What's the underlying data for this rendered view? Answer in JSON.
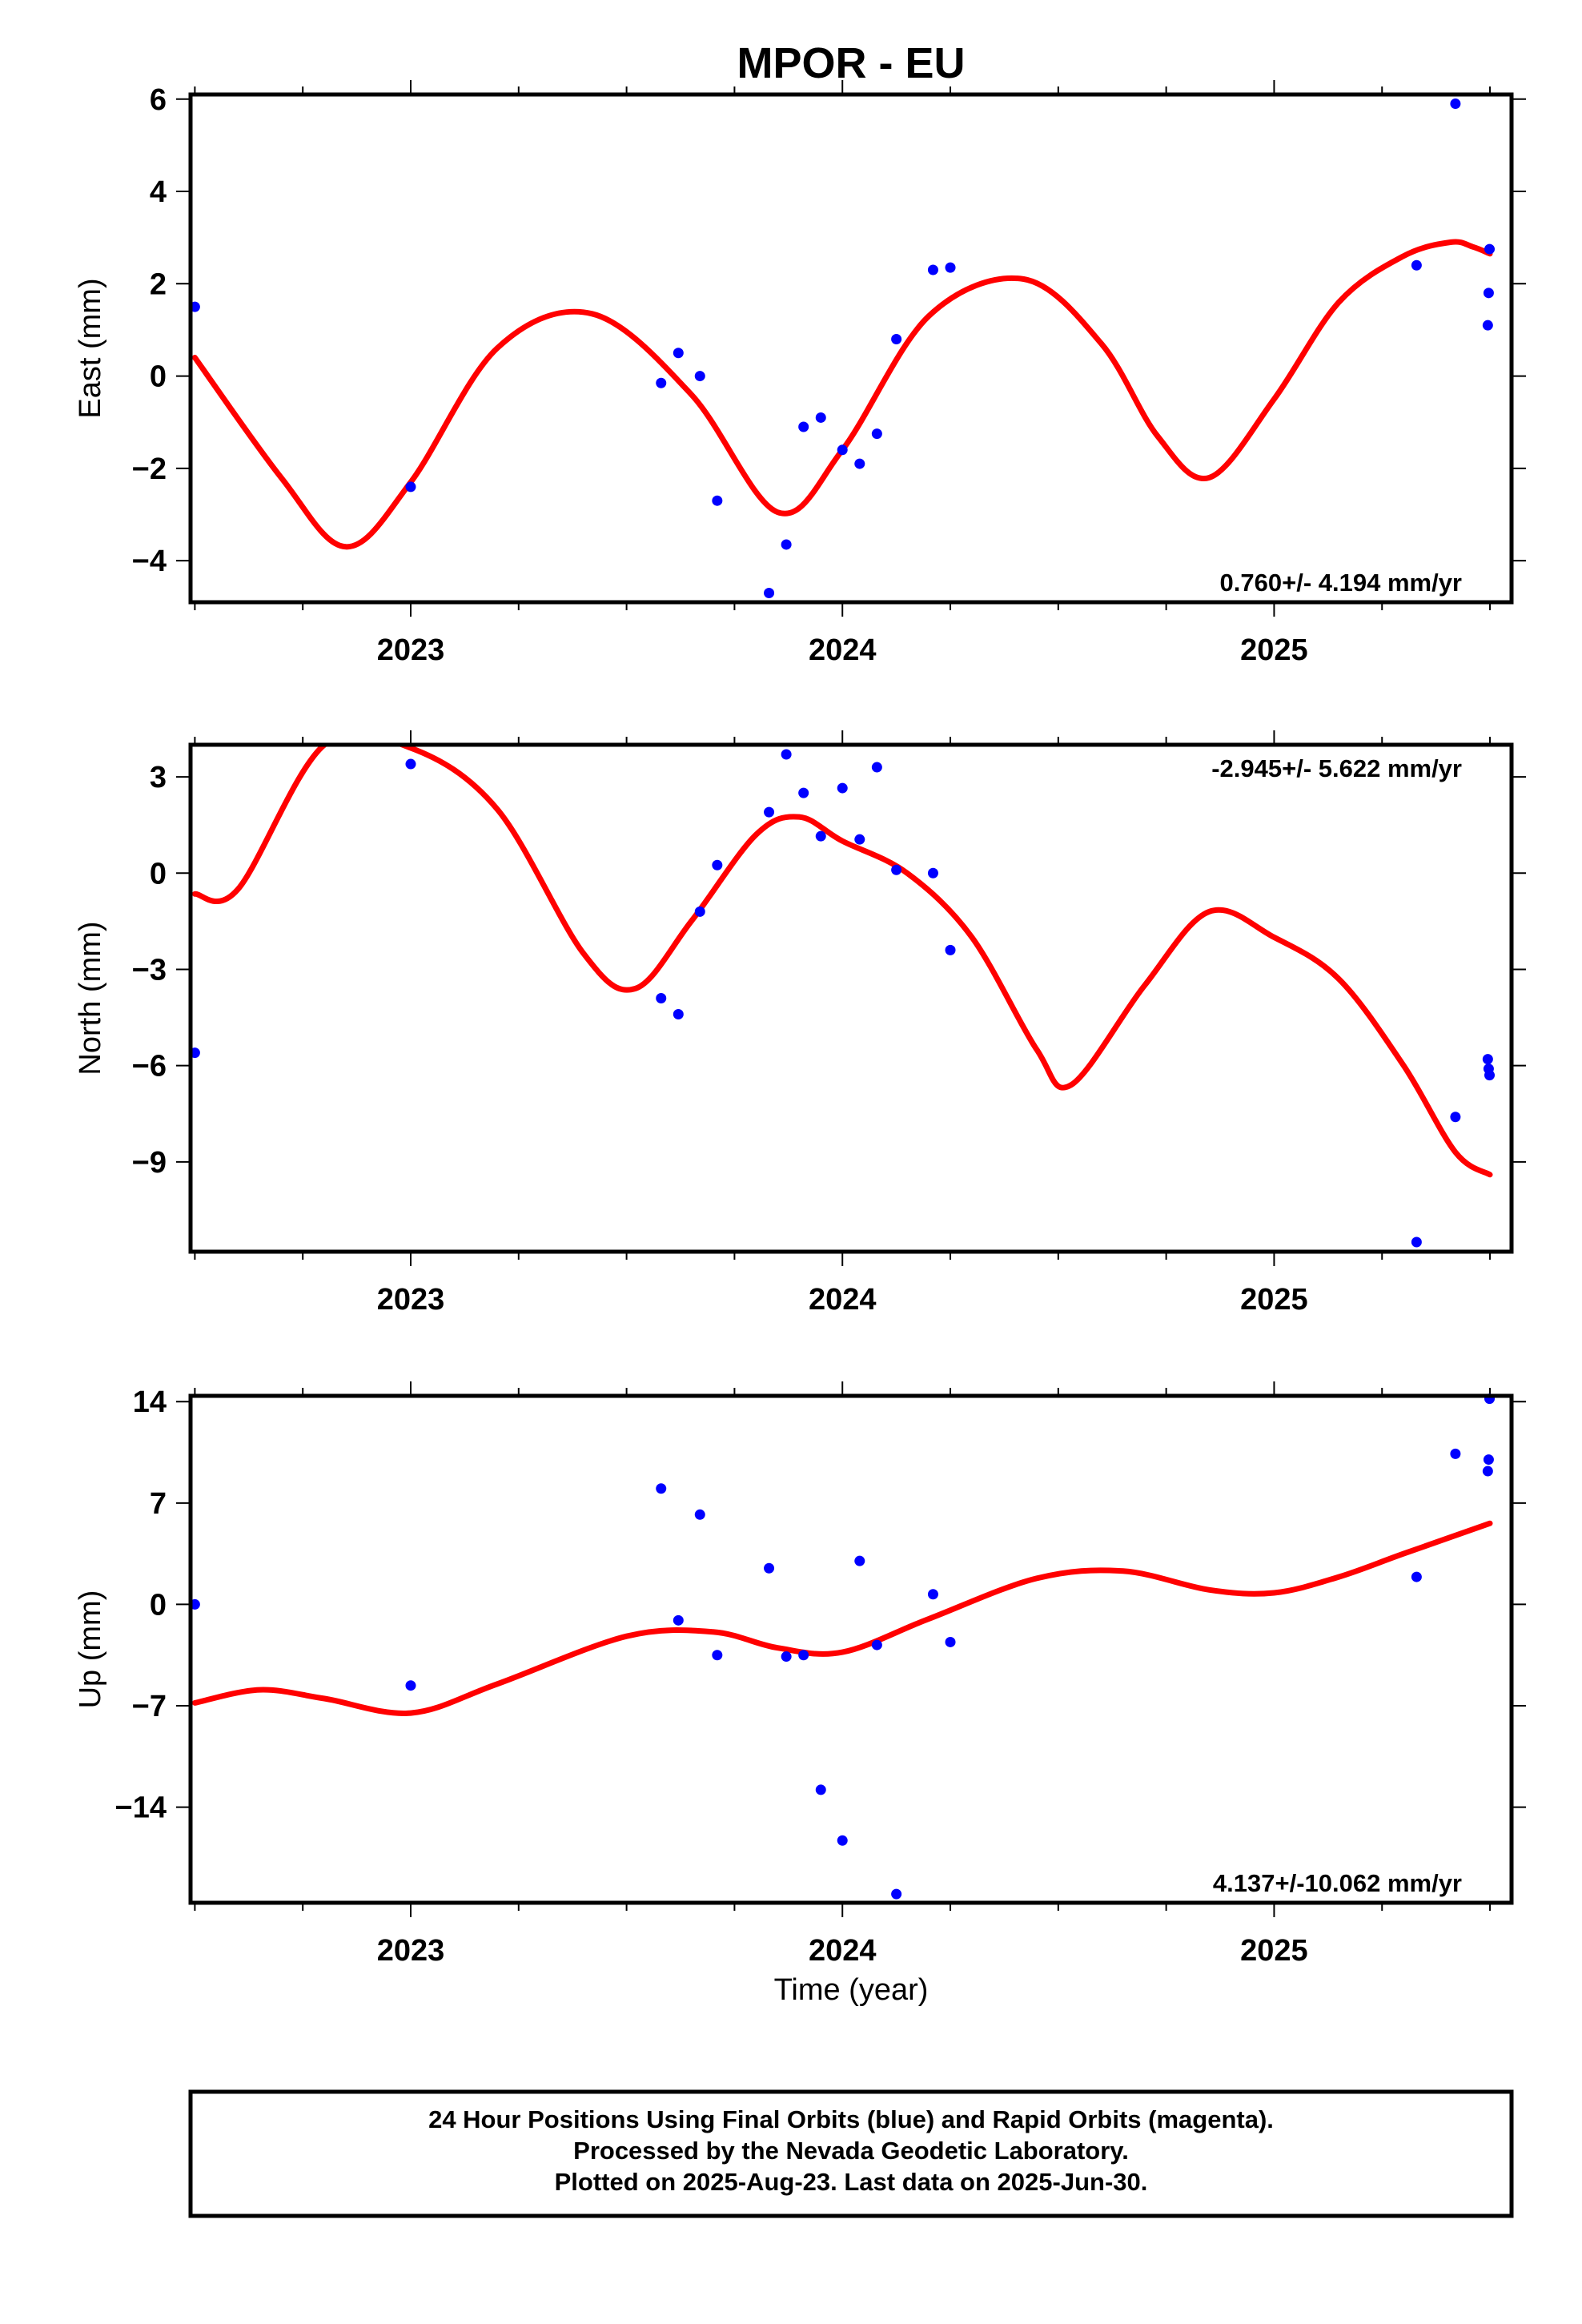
{
  "title": "MPOR - EU",
  "xlabel": "Time (year)",
  "footer": [
    "24 Hour Positions Using Final Orbits (blue) and Rapid Orbits (magenta).",
    "Processed by the Nevada Geodetic Laboratory.",
    "Plotted on 2025-Aug-23. Last data on 2025-Jun-30."
  ],
  "colors": {
    "points": "#0000ff",
    "fit": "#ff0000",
    "frame": "#000000"
  },
  "chart_data": [
    {
      "type": "scatter",
      "ylabel": "East (mm)",
      "rate_label": "0.760+/- 4.194 mm/yr",
      "xlim": [
        2022.49,
        2025.55
      ],
      "ylim": [
        -4.9,
        6.1
      ],
      "xticks": [
        2023,
        2024,
        2025
      ],
      "yticks": [
        -4,
        -2,
        0,
        2,
        4,
        6
      ],
      "points": {
        "x": [
          2022.5,
          2023.0,
          2023.58,
          2023.62,
          2023.67,
          2023.71,
          2023.83,
          2023.87,
          2023.91,
          2023.95,
          2024.0,
          2024.04,
          2024.08,
          2024.125,
          2024.21,
          2024.25,
          2025.33,
          2025.42,
          2025.495,
          2025.497,
          2025.499
        ],
        "y": [
          1.5,
          -2.4,
          -0.15,
          0.5,
          0.0,
          -2.7,
          -4.7,
          -3.65,
          -1.1,
          -0.9,
          -1.6,
          -1.9,
          -1.25,
          0.8,
          2.3,
          2.35,
          2.4,
          5.9,
          1.1,
          1.8,
          2.75
        ]
      },
      "fit": {
        "x": [
          2022.5,
          2022.7,
          2022.85,
          2023.0,
          2023.2,
          2023.42,
          2023.65,
          2023.85,
          2024.0,
          2024.2,
          2024.42,
          2024.6,
          2024.73,
          2024.85,
          2025.0,
          2025.15,
          2025.3,
          2025.41,
          2025.46,
          2025.5
        ],
        "y": [
          0.4,
          -2.2,
          -3.7,
          -2.3,
          0.6,
          1.35,
          -0.4,
          -2.95,
          -1.6,
          1.3,
          2.1,
          0.7,
          -1.3,
          -2.2,
          -0.5,
          1.6,
          2.6,
          2.9,
          2.8,
          2.65
        ]
      }
    },
    {
      "type": "scatter",
      "ylabel": "North (mm)",
      "rate_label": "-2.945+/- 5.622 mm/yr",
      "xlim": [
        2022.49,
        2025.55
      ],
      "ylim": [
        -11.8,
        4.0
      ],
      "xticks": [
        2023,
        2024,
        2025
      ],
      "yticks": [
        -9,
        -6,
        -3,
        0,
        3
      ],
      "points": {
        "x": [
          2022.5,
          2023.0,
          2023.58,
          2023.62,
          2023.67,
          2023.71,
          2023.83,
          2023.87,
          2023.91,
          2023.95,
          2024.0,
          2024.04,
          2024.08,
          2024.125,
          2024.21,
          2024.25,
          2025.33,
          2025.42,
          2025.495,
          2025.497,
          2025.499
        ],
        "y": [
          -5.6,
          3.4,
          -3.9,
          -4.4,
          -1.2,
          0.25,
          1.9,
          3.7,
          2.5,
          1.15,
          2.65,
          1.05,
          3.3,
          0.1,
          0.0,
          -2.4,
          -11.5,
          -7.6,
          -5.8,
          -6.1,
          -6.3
        ]
      },
      "fit": {
        "x": [
          2022.5,
          2022.6,
          2022.8,
          2023.0,
          2023.2,
          2023.4,
          2023.52,
          2023.65,
          2023.8,
          2023.9,
          2024.0,
          2024.15,
          2024.3,
          2024.45,
          2024.53,
          2024.7,
          2024.85,
          2025.0,
          2025.15,
          2025.3,
          2025.42,
          2025.5
        ],
        "y": [
          -0.65,
          -0.5,
          4.0,
          3.9,
          2.0,
          -2.5,
          -3.6,
          -1.5,
          1.2,
          1.75,
          1.0,
          0.0,
          -2.0,
          -5.5,
          -6.6,
          -3.5,
          -1.2,
          -2.0,
          -3.3,
          -6.0,
          -8.7,
          -9.4
        ]
      }
    },
    {
      "type": "scatter",
      "ylabel": "Up (mm)",
      "rate_label": "4.137+/-10.062 mm/yr",
      "xlim": [
        2022.49,
        2025.55
      ],
      "ylim": [
        -20.6,
        14.4
      ],
      "xticks": [
        2023,
        2024,
        2025
      ],
      "yticks": [
        -14,
        -7,
        0,
        7,
        14
      ],
      "points": {
        "x": [
          2022.5,
          2023.0,
          2023.58,
          2023.62,
          2023.67,
          2023.71,
          2023.83,
          2023.87,
          2023.91,
          2023.95,
          2024.0,
          2024.04,
          2024.08,
          2024.125,
          2024.21,
          2024.25,
          2025.33,
          2025.42,
          2025.495,
          2025.497,
          2025.499
        ],
        "y": [
          0.0,
          -5.6,
          8.0,
          -1.1,
          6.2,
          -3.5,
          2.5,
          -3.6,
          -3.5,
          -12.8,
          -16.3,
          3.0,
          -2.8,
          -20.0,
          0.7,
          -2.6,
          1.9,
          10.4,
          9.2,
          10.0,
          14.2
        ]
      },
      "fit": {
        "x": [
          2022.5,
          2022.65,
          2022.8,
          2023.0,
          2023.2,
          2023.5,
          2023.7,
          2023.85,
          2024.0,
          2024.2,
          2024.45,
          2024.65,
          2024.85,
          2025.0,
          2025.15,
          2025.3,
          2025.5
        ],
        "y": [
          -6.8,
          -5.9,
          -6.5,
          -7.5,
          -5.5,
          -2.2,
          -1.9,
          -3.0,
          -3.3,
          -1.0,
          1.8,
          2.3,
          1.0,
          0.8,
          1.9,
          3.5,
          5.6
        ]
      }
    }
  ]
}
